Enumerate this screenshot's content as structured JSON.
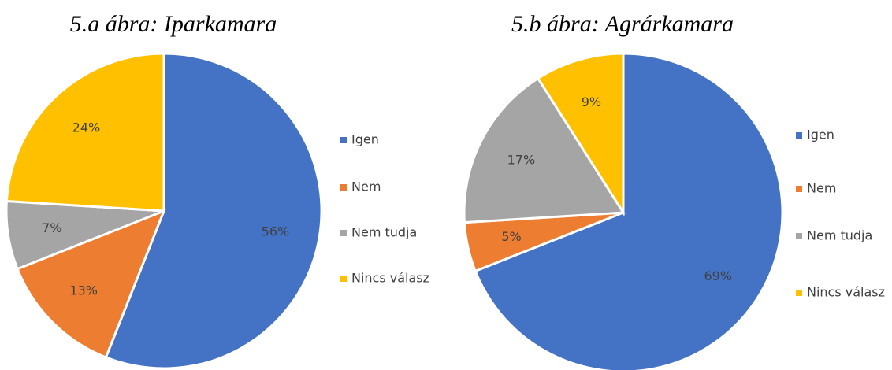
{
  "chart_data": [
    {
      "type": "pie",
      "title": "5.a ábra: Iparkamara",
      "categories": [
        "Igen",
        "Nem",
        "Nem tudja",
        "Nincs válasz"
      ],
      "values": [
        56,
        13,
        7,
        24
      ],
      "value_labels": [
        "56%",
        "13%",
        "7%",
        "24%"
      ],
      "colors": [
        "#4472c4",
        "#ed7d31",
        "#a5a5a5",
        "#ffc000"
      ],
      "legend": "right"
    },
    {
      "type": "pie",
      "title": "5.b ábra: Agrárkamara",
      "categories": [
        "Igen",
        "Nem",
        "Nem tudja",
        "Nincs válasz"
      ],
      "values": [
        69,
        5,
        17,
        9
      ],
      "value_labels": [
        "69%",
        "5%",
        "17%",
        "9%"
      ],
      "colors": [
        "#4472c4",
        "#ed7d31",
        "#a5a5a5",
        "#ffc000"
      ],
      "legend": "right"
    }
  ]
}
